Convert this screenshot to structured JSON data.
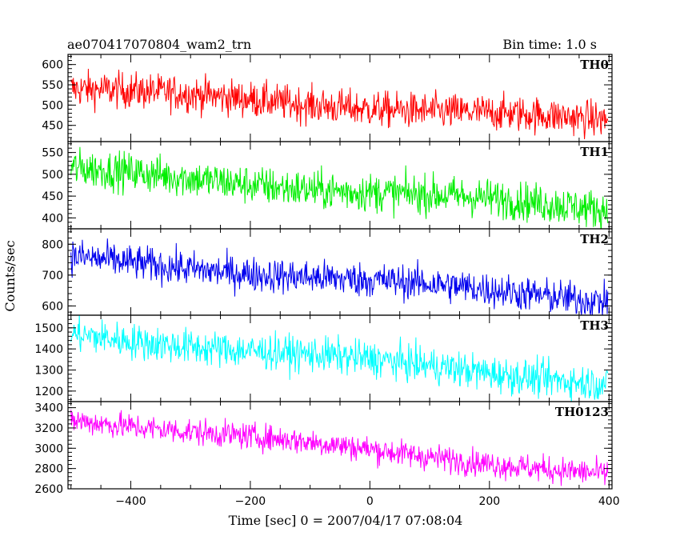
{
  "chart_data": {
    "type": "line",
    "title": "ae070417070804_wam2_trn",
    "subtitle": "Bin time: 1.0 s",
    "xlabel": "Time [sec] 0 = 2007/04/17 07:08:04",
    "ylabel": "Counts/sec",
    "xlim": [
      -505,
      405
    ],
    "x_step": 1.0,
    "x_ticks": [
      -400,
      -200,
      0,
      200,
      400
    ],
    "grid": false,
    "panels": [
      {
        "name": "TH0",
        "color": "#ff0000",
        "ylim": [
          410,
          625
        ],
        "y_ticks": [
          450,
          500,
          550,
          600
        ],
        "trend": {
          "start": 540,
          "end": 460
        },
        "noise": 22
      },
      {
        "name": "TH1",
        "color": "#00ee00",
        "ylim": [
          375,
          575
        ],
        "y_ticks": [
          400,
          450,
          500,
          550
        ],
        "trend": {
          "start": 510,
          "end": 420
        },
        "noise": 22
      },
      {
        "name": "TH2",
        "color": "#0000ee",
        "ylim": [
          570,
          850
        ],
        "y_ticks": [
          600,
          700,
          800
        ],
        "trend": {
          "start": 755,
          "end": 620
        },
        "noise": 28
      },
      {
        "name": "TH3",
        "color": "#00ffff",
        "ylim": [
          1150,
          1560
        ],
        "y_ticks": [
          1200,
          1300,
          1400,
          1500
        ],
        "trend": {
          "start": 1470,
          "end": 1240
        },
        "noise": 42
      },
      {
        "name": "TH0123",
        "color": "#ff00ff",
        "ylim": [
          2600,
          3460
        ],
        "y_ticks": [
          2600,
          2800,
          3000,
          3200,
          3400
        ],
        "trend": {
          "start": 3290,
          "end": 2740
        },
        "noise": 65
      }
    ]
  }
}
